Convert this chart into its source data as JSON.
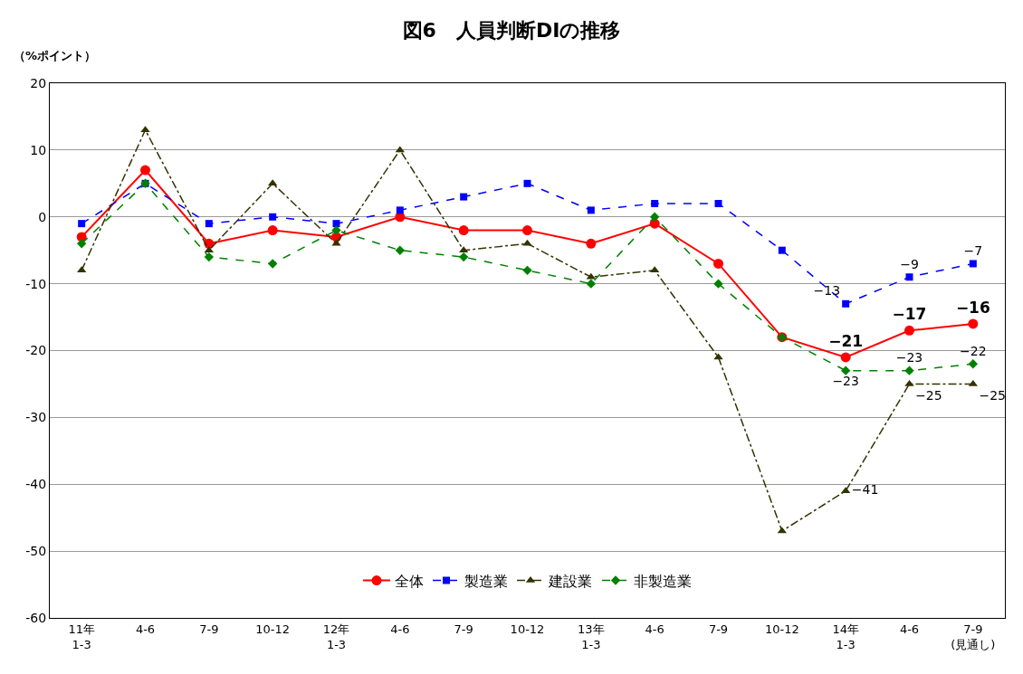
{
  "chart_data": {
    "type": "line",
    "title": "図6　人員判断DIの推移",
    "ylabel": "（%ポイント）",
    "categories": [
      "11年\n1-3",
      "4-6",
      "7-9",
      "10-12",
      "12年\n1-3",
      "4-6",
      "7-9",
      "10-12",
      "13年\n1-3",
      "4-6",
      "7-9",
      "10-12",
      "14年\n1-3",
      "4-6",
      "7-9\n(見通し)"
    ],
    "series": [
      {
        "name": "全体",
        "color": "#ff0000",
        "marker": "circle",
        "line_style": "solid",
        "values": [
          -3,
          7,
          -4,
          -2,
          -3,
          0,
          -2,
          -2,
          -4,
          -1,
          -7,
          -18,
          -21,
          -17,
          -16
        ],
        "value_labels": [
          null,
          null,
          null,
          null,
          null,
          null,
          null,
          null,
          null,
          null,
          null,
          null,
          "−21",
          "−17",
          "−16"
        ]
      },
      {
        "name": "製造業",
        "color": "#0000ff",
        "marker": "square",
        "line_style": "dashed",
        "values": [
          -1,
          5,
          -1,
          0,
          -1,
          1,
          3,
          5,
          1,
          2,
          2,
          -5,
          -13,
          -9,
          -7
        ],
        "value_labels": [
          null,
          null,
          null,
          null,
          null,
          null,
          null,
          null,
          null,
          null,
          null,
          null,
          "−13",
          "−9",
          "−7"
        ]
      },
      {
        "name": "建設業",
        "color": "#333300",
        "marker": "triangle",
        "line_style": "dashdot",
        "values": [
          -8,
          13,
          -5,
          5,
          -4,
          10,
          -5,
          -4,
          -9,
          -8,
          -21,
          -47,
          -41,
          -25,
          -25
        ],
        "value_labels": [
          null,
          null,
          null,
          null,
          null,
          null,
          null,
          null,
          null,
          null,
          null,
          null,
          "−41",
          "−25",
          "−25"
        ]
      },
      {
        "name": "非製造業",
        "color": "#008000",
        "marker": "diamond",
        "line_style": "dashed",
        "values": [
          -4,
          5,
          -6,
          -7,
          -2,
          -5,
          -6,
          -8,
          -10,
          0,
          -10,
          -18,
          -23,
          -23,
          -22
        ],
        "value_labels": [
          null,
          null,
          null,
          null,
          null,
          null,
          null,
          null,
          null,
          null,
          null,
          null,
          "−23",
          "−23",
          "−22"
        ]
      }
    ],
    "ylim": [
      -60,
      20
    ],
    "yticks": [
      -60,
      -50,
      -40,
      -30,
      -20,
      -10,
      0,
      10,
      20
    ],
    "grid": "y",
    "legend": "bottom"
  }
}
